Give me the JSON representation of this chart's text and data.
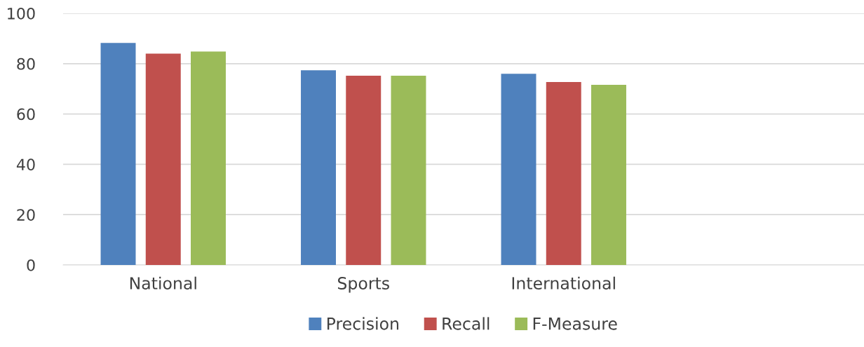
{
  "chart_data": {
    "type": "bar",
    "categories": [
      "National",
      "Sports",
      "International",
      null
    ],
    "series": [
      {
        "name": "Precision",
        "color": "#4f81bd",
        "values": [
          88.2,
          77.4,
          76.0,
          null
        ]
      },
      {
        "name": "Recall",
        "color": "#c0504d",
        "values": [
          84.0,
          75.2,
          72.7,
          null
        ]
      },
      {
        "name": "F-Measure",
        "color": "#9bbb59",
        "values": [
          84.8,
          75.2,
          71.6,
          null
        ]
      }
    ],
    "ylim": [
      0,
      100
    ],
    "yticks": [
      0,
      20,
      40,
      60,
      80,
      100
    ],
    "grid": "y",
    "legend": "bottom"
  }
}
